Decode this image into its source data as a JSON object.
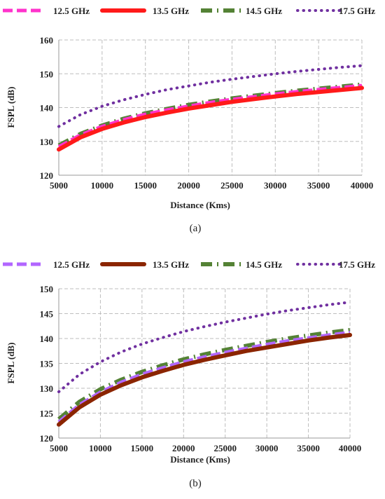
{
  "chart_data": [
    {
      "type": "line",
      "caption": "(a)",
      "xlabel": "Distance (Kms)",
      "ylabel": "FSPL (dB)",
      "xlim": [
        5000,
        40000
      ],
      "ylim": [
        120,
        160
      ],
      "xticks": [
        5000,
        10000,
        15000,
        20000,
        25000,
        30000,
        35000,
        40000
      ],
      "yticks": [
        120,
        130,
        140,
        150,
        160
      ],
      "grid": true,
      "legend_position": "top",
      "x": [
        5000,
        7500,
        10000,
        12500,
        15000,
        17500,
        20000,
        22500,
        25000,
        27500,
        30000,
        32500,
        35000,
        37500,
        40000
      ],
      "series": [
        {
          "name": "12.5 GHz",
          "color": "#ff33cc",
          "style": "dashed",
          "values": [
            128.4,
            131.9,
            134.4,
            136.4,
            138.0,
            139.3,
            140.4,
            141.5,
            142.4,
            143.2,
            144.0,
            144.7,
            145.3,
            145.9,
            146.5
          ]
        },
        {
          "name": "13.5 GHz",
          "color": "#ff1a1a",
          "style": "solid-thick",
          "values": [
            127.6,
            131.2,
            133.7,
            135.6,
            137.2,
            138.5,
            139.7,
            140.7,
            141.7,
            142.5,
            143.3,
            144.0,
            144.6,
            145.2,
            145.8
          ]
        },
        {
          "name": "14.5 GHz",
          "color": "#548235",
          "style": "dash-dot",
          "values": [
            128.8,
            132.2,
            134.7,
            136.7,
            138.3,
            139.6,
            140.8,
            141.8,
            142.7,
            143.5,
            144.3,
            145.0,
            145.6,
            146.2,
            146.8
          ]
        },
        {
          "name": "17.5 GHz",
          "color": "#7030a0",
          "style": "dotted",
          "values": [
            134.4,
            137.9,
            140.4,
            142.3,
            143.9,
            145.3,
            146.4,
            147.5,
            148.4,
            149.2,
            150.0,
            150.7,
            151.3,
            151.9,
            152.4
          ]
        }
      ]
    },
    {
      "type": "line",
      "caption": "(b)",
      "xlabel": "Distance (Kms)",
      "ylabel": "FSPL (dB)",
      "xlim": [
        5000,
        40000
      ],
      "ylim": [
        120,
        150
      ],
      "xticks": [
        5000,
        10000,
        15000,
        20000,
        25000,
        30000,
        35000,
        40000
      ],
      "yticks": [
        120,
        125,
        130,
        135,
        140,
        145,
        150
      ],
      "grid": true,
      "legend_position": "top",
      "x": [
        5000,
        7500,
        10000,
        12500,
        15000,
        17500,
        20000,
        22500,
        25000,
        27500,
        30000,
        32500,
        35000,
        37500,
        40000
      ],
      "series": [
        {
          "name": "12.5 GHz",
          "color": "#b266ff",
          "style": "dashed",
          "values": [
            123.2,
            126.7,
            129.2,
            131.2,
            132.8,
            134.1,
            135.3,
            136.3,
            137.2,
            138.0,
            138.8,
            139.5,
            140.1,
            140.7,
            141.2
          ]
        },
        {
          "name": "13.5 GHz",
          "color": "#8b2500",
          "style": "solid-thick",
          "values": [
            122.7,
            126.2,
            128.7,
            130.6,
            132.2,
            133.5,
            134.7,
            135.7,
            136.6,
            137.5,
            138.2,
            138.9,
            139.6,
            140.2,
            140.7
          ]
        },
        {
          "name": "14.5 GHz",
          "color": "#548235",
          "style": "dash-dot",
          "values": [
            123.8,
            127.3,
            129.8,
            131.7,
            133.3,
            134.6,
            135.8,
            136.8,
            137.7,
            138.5,
            139.3,
            140.0,
            140.6,
            141.2,
            141.7
          ]
        },
        {
          "name": "17.5 GHz",
          "color": "#7030a0",
          "style": "dotted",
          "values": [
            129.3,
            132.8,
            135.3,
            137.3,
            138.9,
            140.2,
            141.4,
            142.4,
            143.3,
            144.1,
            144.9,
            145.6,
            146.2,
            146.8,
            147.3
          ]
        }
      ]
    }
  ]
}
